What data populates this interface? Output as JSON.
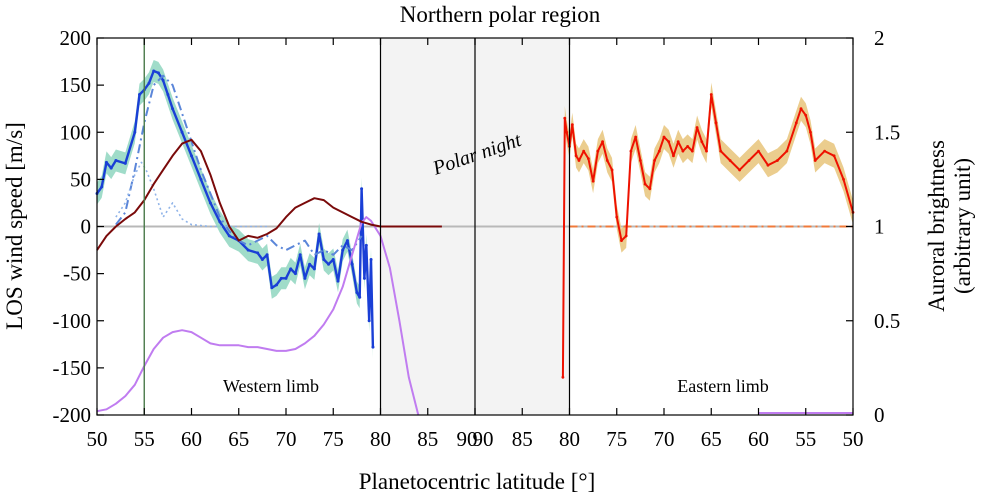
{
  "chart_data": {
    "type": "line",
    "title": "Northern polar region",
    "xlabel": "Planetocentric latitude [°]",
    "ylabel": "LOS wind speed [m/s]",
    "y2label_line1": "Auroral brightness",
    "y2label_line2": "(arbitrary unit)",
    "ylim": [
      -200,
      200
    ],
    "y2lim": [
      0,
      2
    ],
    "yticks": [
      200,
      150,
      100,
      50,
      0,
      -50,
      -100,
      -150,
      -200
    ],
    "y2ticks": [
      "2",
      "1.5",
      "1",
      "0.5",
      "0"
    ],
    "xticks_west": [
      50,
      55,
      60,
      65,
      70,
      75,
      80,
      85,
      90
    ],
    "xticks_east": [
      90,
      85,
      80,
      75,
      70,
      65,
      60,
      55,
      50
    ],
    "xtick_labels": [
      "50",
      "55",
      "60",
      "65",
      "70",
      "75",
      "80",
      "85",
      "90",
      "90",
      "85",
      "80",
      "75",
      "70",
      "65",
      "60",
      "55",
      "50"
    ],
    "annotations": {
      "western_limb": "Western limb",
      "eastern_limb": "Eastern limb",
      "polar_night": "Polar night"
    },
    "polar_night_latitude_start": 80,
    "vertical_marker_latitude": 55,
    "colors": {
      "west_wind": "#1a3fd6",
      "west_band": "#8fd6c0",
      "west_dashdot": "#5b86d9",
      "west_dotted": "#8fb3e8",
      "east_wind": "#ee1100",
      "east_band": "#e8c47a",
      "maroon": "#7a0a0a",
      "purple": "#c07cf0",
      "zero_line": "#b8b8b8",
      "polar_night_fill": "#f3f3f3"
    },
    "series": [
      {
        "side": "west",
        "style": "solid",
        "x": [
          50,
          50.5,
          51,
          51.5,
          52,
          53,
          54,
          54.5,
          55,
          55.5,
          56,
          56.5,
          57,
          57.5,
          58,
          59,
          60,
          61,
          62,
          63,
          64,
          65,
          66,
          67,
          67.5,
          68,
          68.5,
          69,
          69.5,
          70,
          70.5,
          71,
          71.5,
          72,
          72.5,
          73,
          73.5,
          74,
          74.5,
          75,
          75.5,
          76,
          76.5,
          77,
          77.5,
          77.8,
          78,
          78.3,
          78.5,
          78.8,
          79,
          79.2
        ],
        "values": [
          35,
          42,
          68,
          62,
          70,
          67,
          100,
          140,
          145,
          152,
          165,
          163,
          155,
          140,
          125,
          100,
          75,
          50,
          25,
          5,
          -10,
          -15,
          -25,
          -28,
          -35,
          -30,
          -65,
          -62,
          -55,
          -55,
          -45,
          -50,
          -30,
          -55,
          -40,
          -45,
          -8,
          -35,
          -40,
          -35,
          -58,
          -25,
          -15,
          -40,
          -70,
          -75,
          40,
          -55,
          -20,
          -100,
          -35,
          -128
        ]
      },
      {
        "side": "west",
        "style": "dashdot",
        "x": [
          52,
          53,
          54,
          55,
          56,
          57,
          58,
          59,
          60,
          61,
          62,
          63,
          64,
          65,
          66,
          67,
          68,
          69,
          70,
          71,
          72,
          73,
          74,
          75,
          76,
          77,
          78
        ],
        "values": [
          2,
          15,
          60,
          110,
          150,
          160,
          150,
          120,
          90,
          60,
          35,
          10,
          -5,
          -15,
          -20,
          -15,
          -10,
          -20,
          -25,
          -20,
          -15,
          -30,
          -25,
          -30,
          -20,
          -25,
          -10
        ]
      },
      {
        "side": "west",
        "style": "dotted",
        "x": [
          52,
          53,
          54,
          54.7,
          55.2,
          56,
          57,
          58,
          59,
          60,
          62,
          64,
          66,
          68
        ],
        "values": [
          10,
          25,
          55,
          68,
          60,
          40,
          10,
          25,
          8,
          2,
          0,
          0,
          0,
          0
        ]
      },
      {
        "side": "west",
        "style": "solid",
        "role": "brightness",
        "x": [
          50,
          51,
          52,
          53,
          54,
          55,
          56,
          57,
          58,
          59,
          60,
          61,
          62,
          63,
          64,
          65,
          66,
          67,
          68,
          69,
          70,
          71,
          72,
          73,
          74,
          75,
          76,
          77,
          78,
          78.5,
          79,
          80,
          81,
          82,
          83,
          84
        ],
        "values": [
          0.02,
          0.03,
          0.06,
          0.1,
          0.16,
          0.26,
          0.35,
          0.41,
          0.44,
          0.45,
          0.44,
          0.41,
          0.38,
          0.37,
          0.37,
          0.37,
          0.36,
          0.36,
          0.35,
          0.34,
          0.34,
          0.35,
          0.38,
          0.42,
          0.48,
          0.56,
          0.68,
          0.85,
          1.02,
          1.05,
          1.03,
          0.95,
          0.78,
          0.5,
          0.2,
          0.0
        ]
      },
      {
        "side": "west",
        "style": "solid",
        "role": "secondary",
        "x": [
          50,
          51,
          52,
          53,
          54,
          55,
          56,
          57,
          58,
          59,
          60,
          61,
          62,
          63,
          64,
          65,
          66,
          67,
          68,
          69,
          70,
          71,
          72,
          73,
          74,
          75,
          76,
          77,
          78,
          79,
          80,
          82,
          84,
          86,
          86.5
        ],
        "values": [
          -25,
          -10,
          0,
          8,
          15,
          28,
          45,
          60,
          75,
          88,
          92,
          80,
          55,
          25,
          0,
          -15,
          -10,
          -12,
          -8,
          -2,
          10,
          20,
          25,
          30,
          28,
          20,
          15,
          10,
          5,
          2,
          0,
          0,
          0,
          0,
          0
        ]
      },
      {
        "side": "east",
        "style": "solid",
        "x": [
          80.7,
          80.5,
          80.3,
          80,
          79.7,
          79.3,
          79,
          78.5,
          78,
          77.5,
          77,
          76.5,
          76,
          75.5,
          75,
          74.5,
          74,
          73.5,
          73,
          72.5,
          72,
          71.5,
          71,
          70.5,
          70,
          69.5,
          69,
          68.5,
          68,
          67.5,
          67,
          66.5,
          66,
          65.5,
          65,
          64.5,
          64,
          63,
          62,
          61,
          60,
          59,
          58,
          57,
          56,
          55.5,
          55,
          54.5,
          54,
          53,
          52,
          51,
          50
        ],
        "values": [
          -160,
          115,
          100,
          85,
          108,
          75,
          70,
          80,
          72,
          48,
          80,
          90,
          70,
          60,
          10,
          -15,
          -10,
          80,
          95,
          70,
          45,
          40,
          70,
          80,
          95,
          90,
          75,
          90,
          80,
          85,
          80,
          105,
          90,
          80,
          140,
          110,
          80,
          70,
          60,
          70,
          80,
          65,
          70,
          80,
          110,
          125,
          118,
          100,
          70,
          80,
          75,
          50,
          15
        ]
      }
    ]
  }
}
